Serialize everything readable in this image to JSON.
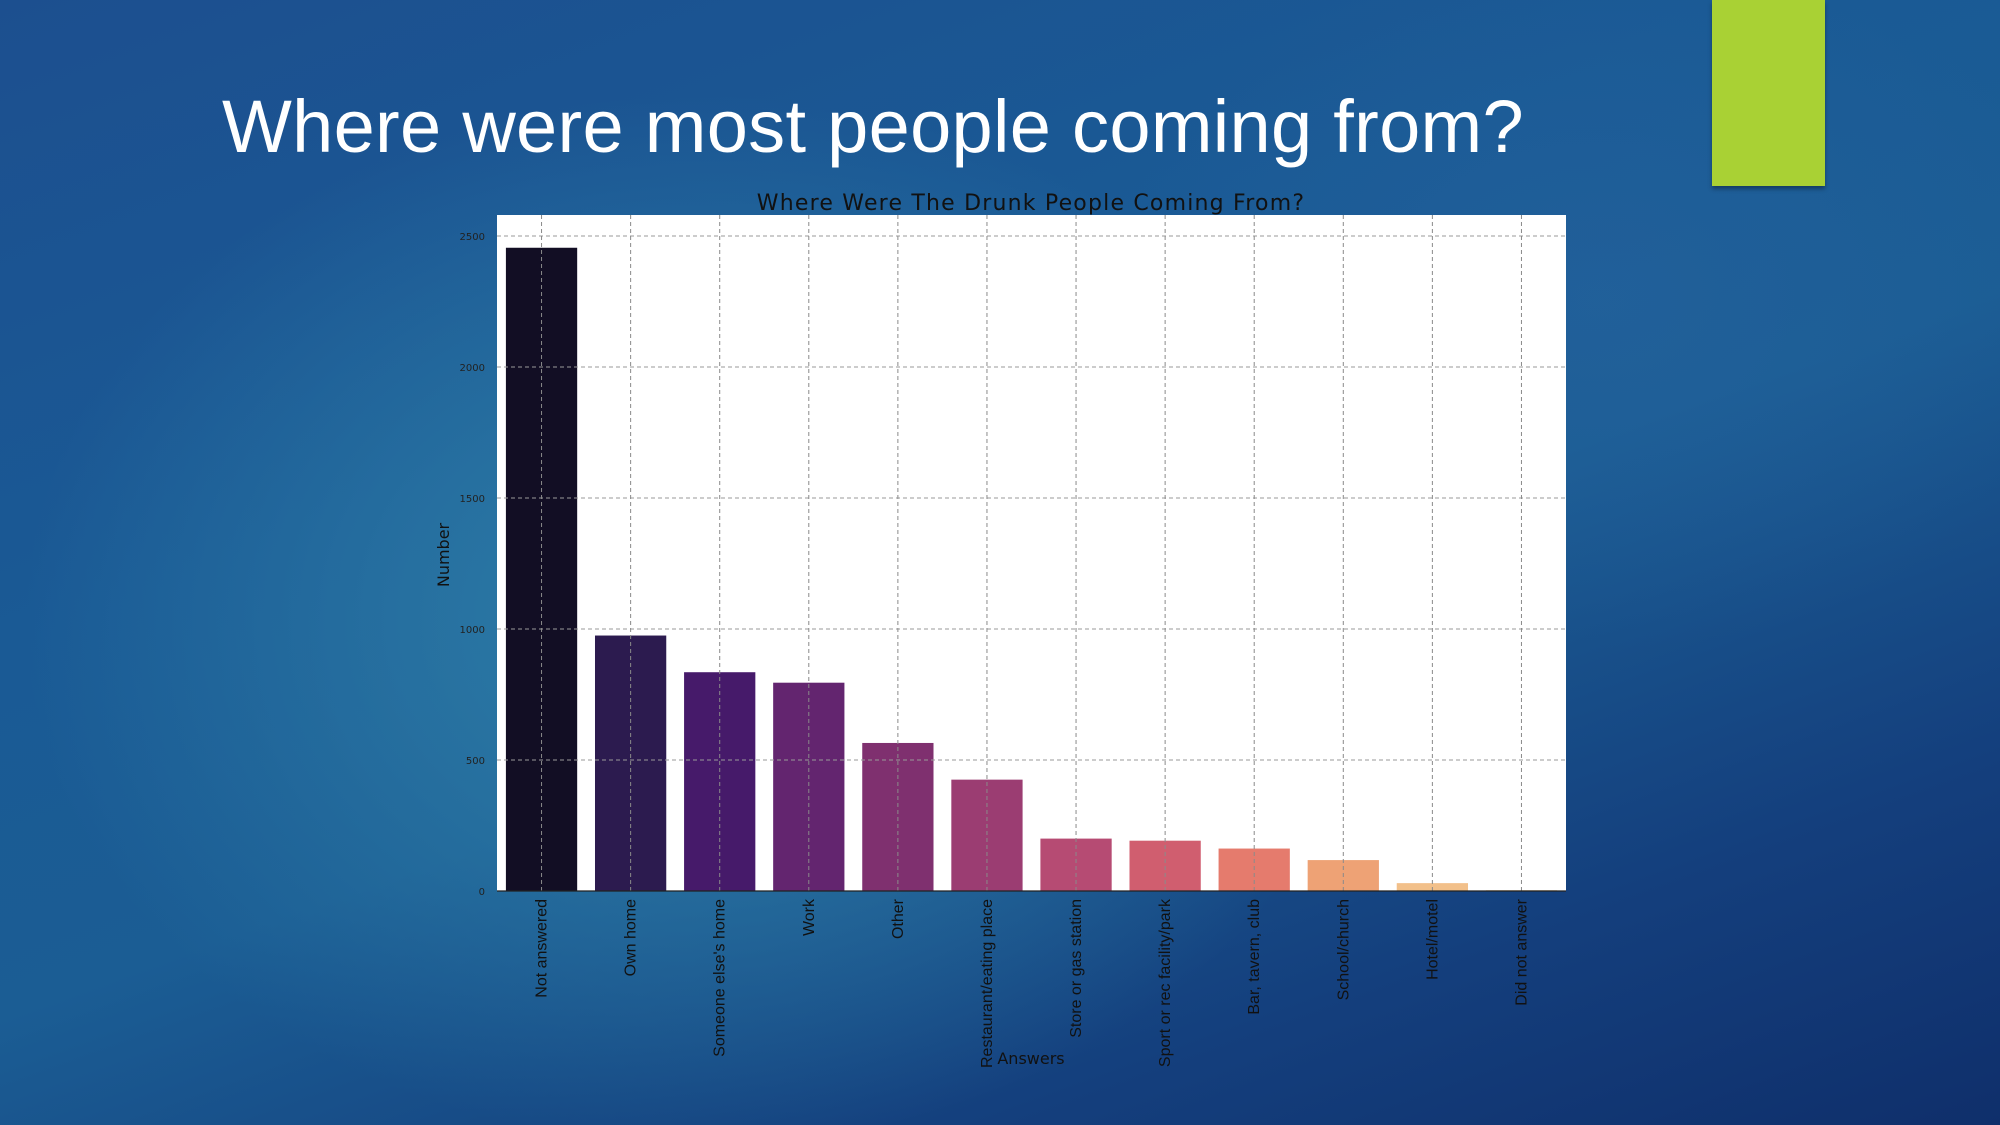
{
  "slide": {
    "title": "Where were most people coming from?",
    "accent_color": "#a9d134"
  },
  "chart_data": {
    "type": "bar",
    "title": "Where Were The Drunk People Coming From?",
    "xlabel": "Answers",
    "ylabel": "Number",
    "ylim": [
      0,
      2580
    ],
    "yticks": [
      0,
      500,
      1000,
      1500,
      2000,
      2500
    ],
    "grid": true,
    "categories": [
      "Not answered",
      "Own home",
      "Someone else's home",
      "Work",
      "Other",
      "Restaurant/eating place",
      "Store or gas station",
      "Sport or rec facility/park",
      "Bar, tavern, club",
      "School/church",
      "Hotel/motel",
      "Did not answer"
    ],
    "values": [
      2455,
      975,
      835,
      795,
      565,
      425,
      200,
      192,
      162,
      118,
      30,
      3
    ],
    "colors": [
      "#120e24",
      "#2c1b4f",
      "#461a6a",
      "#63256f",
      "#7f306f",
      "#9b3d72",
      "#b64b73",
      "#d05e6f",
      "#e57b6d",
      "#eea275",
      "#f2c08a",
      "#f5d29c"
    ]
  }
}
